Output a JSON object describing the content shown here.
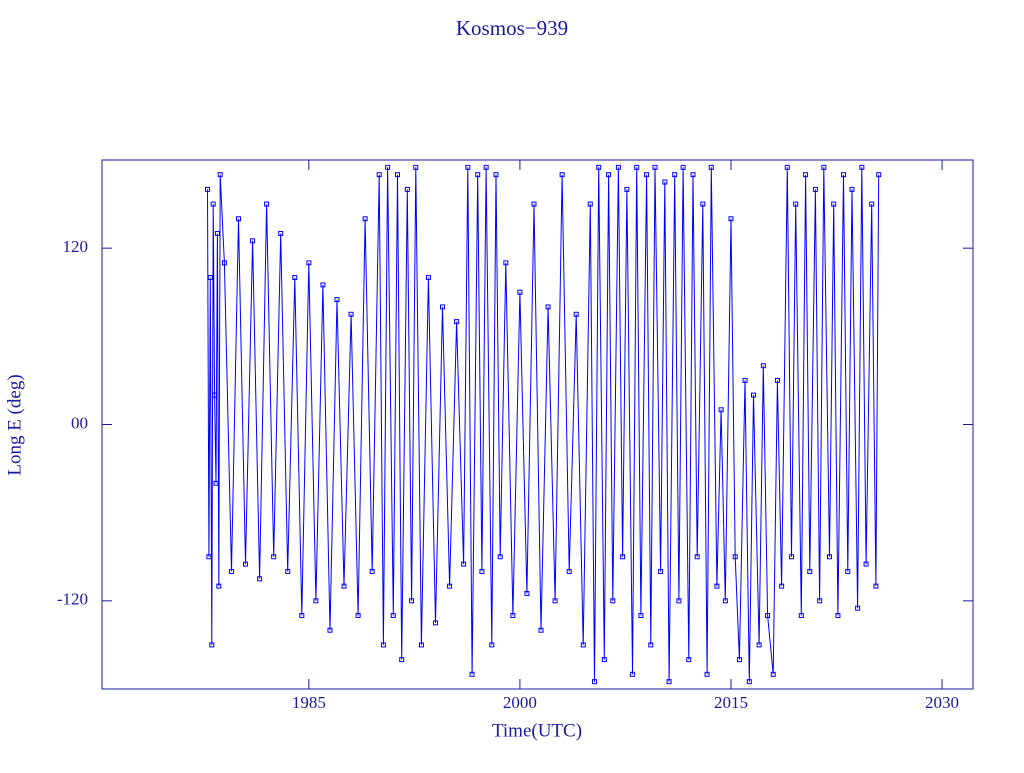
{
  "chart_data": {
    "type": "line",
    "title": "Kosmos−939",
    "xlabel": "Time(UTC)",
    "ylabel": "Long E (deg)",
    "xlim": [
      1970.3,
      2032.2
    ],
    "ylim": [
      -180,
      180
    ],
    "xticks": [
      1985,
      2000,
      2015,
      2030
    ],
    "yticks": [
      -120,
      {
        "value": 0,
        "label": "00"
      },
      120
    ],
    "axis_color": "#1a1aa0",
    "series": [
      {
        "color": "#0000ff",
        "x": [
          1977.8,
          1977.9,
          1978.0,
          1978.1,
          1978.2,
          1978.3,
          1978.4,
          1978.5,
          1978.6,
          1978.7,
          1979,
          1979.5,
          1980,
          1980.5,
          1981,
          1981.5,
          1982,
          1982.5,
          1983,
          1983.5,
          1984,
          1984.5,
          1985,
          1985.5,
          1986,
          1986.5,
          1987,
          1987.5,
          1988,
          1988.5,
          1989,
          1989.5,
          1990,
          1990.3,
          1990.6,
          1991,
          1991.3,
          1991.6,
          1992,
          1992.3,
          1992.6,
          1993,
          1993.5,
          1994,
          1994.5,
          1995,
          1995.5,
          1996,
          1996.3,
          1996.6,
          1997,
          1997.3,
          1997.6,
          1998,
          1998.3,
          1998.6,
          1999,
          1999.5,
          2000,
          2000.5,
          2001,
          2001.5,
          2002,
          2002.5,
          2003,
          2003.5,
          2004,
          2004.5,
          2005,
          2005.3,
          2005.6,
          2006,
          2006.3,
          2006.6,
          2007,
          2007.3,
          2007.6,
          2008,
          2008.3,
          2008.6,
          2009,
          2009.3,
          2009.6,
          2010,
          2010.3,
          2010.6,
          2011,
          2011.3,
          2011.6,
          2012,
          2012.3,
          2012.6,
          2013,
          2013.3,
          2013.6,
          2014,
          2014.3,
          2014.6,
          2015,
          2015.3,
          2015.6,
          2016,
          2016.3,
          2016.6,
          2017,
          2017.3,
          2017.6,
          2018,
          2018.3,
          2018.6,
          2019,
          2019.3,
          2019.6,
          2020,
          2020.3,
          2020.6,
          2021,
          2021.3,
          2021.6,
          2022,
          2022.3,
          2022.6,
          2023,
          2023.3,
          2023.6,
          2024,
          2024.3,
          2024.6,
          2025,
          2025.3,
          2025.5
        ],
        "values": [
          160,
          -90,
          100,
          -150,
          150,
          20,
          -40,
          130,
          -110,
          170,
          110,
          -100,
          140,
          -95,
          125,
          -105,
          150,
          -90,
          130,
          -100,
          100,
          -130,
          110,
          -120,
          95,
          -140,
          85,
          -110,
          75,
          -130,
          140,
          -100,
          170,
          -150,
          175,
          -130,
          170,
          -160,
          160,
          -120,
          175,
          -150,
          100,
          -135,
          80,
          -110,
          70,
          -95,
          175,
          -170,
          170,
          -100,
          175,
          -150,
          170,
          -90,
          110,
          -130,
          90,
          -115,
          150,
          -140,
          80,
          -120,
          170,
          -100,
          75,
          -150,
          150,
          -175,
          175,
          -160,
          170,
          -120,
          175,
          -90,
          160,
          -170,
          175,
          -130,
          170,
          -150,
          175,
          -100,
          165,
          -175,
          170,
          -120,
          175,
          -160,
          170,
          -90,
          150,
          -170,
          175,
          -110,
          10,
          -120,
          140,
          -90,
          -160,
          30,
          -175,
          20,
          -150,
          40,
          -130,
          -170,
          30,
          -110,
          175,
          -90,
          150,
          -130,
          170,
          -100,
          160,
          -120,
          175,
          -90,
          150,
          -130,
          170,
          -100,
          160,
          -125,
          175,
          -95,
          150,
          -110,
          170
        ]
      }
    ]
  }
}
